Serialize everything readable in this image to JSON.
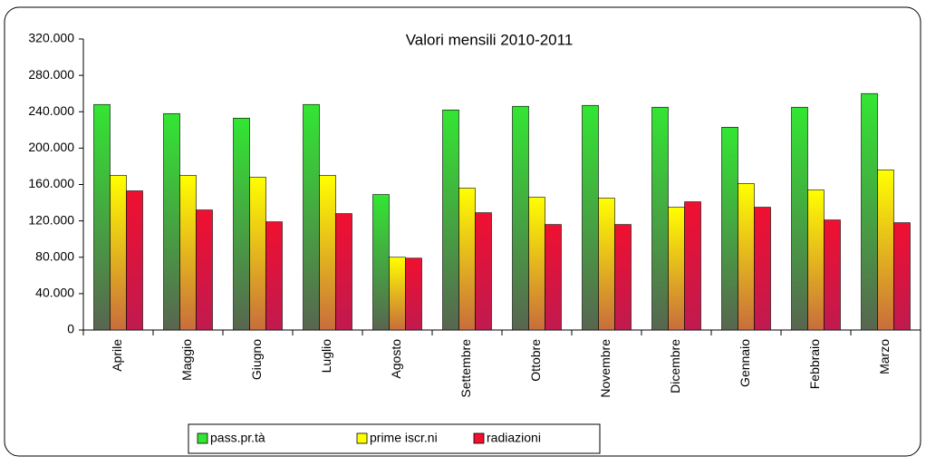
{
  "chart_data": {
    "type": "bar",
    "title": "Valori mensili 2010-2011",
    "categories": [
      "Aprile",
      "Maggio",
      "Giugno",
      "Luglio",
      "Agosto",
      "Settembre",
      "Ottobre",
      "Novembre",
      "Dicembre",
      "Gennaio",
      "Febbraio",
      "Marzo"
    ],
    "series": [
      {
        "name": "pass.pr.tà",
        "color": "#33e633",
        "values": [
          248000,
          238000,
          233000,
          248000,
          149000,
          242000,
          246000,
          247000,
          245000,
          223000,
          245000,
          260000
        ]
      },
      {
        "name": "prime iscr.ni",
        "color": "#ffff00",
        "values": [
          170000,
          170000,
          168000,
          170000,
          80000,
          156000,
          146000,
          145000,
          135000,
          161000,
          154000,
          176000
        ]
      },
      {
        "name": "radiazioni",
        "color": "#f01030",
        "values": [
          153000,
          132000,
          119000,
          128000,
          79000,
          129000,
          116000,
          116000,
          141000,
          135000,
          121000,
          118000
        ]
      }
    ],
    "ylim": [
      0,
      320000
    ],
    "yticks": [
      0,
      {
        "value": 40000,
        "label": "40.000"
      },
      {
        "value": 80000,
        "label": "80.000"
      },
      {
        "value": 120000,
        "label": "120.000"
      },
      {
        "value": 160000,
        "label": "160.000"
      },
      {
        "value": 200000,
        "label": "200.000"
      },
      {
        "value": 240000,
        "label": "240.000"
      },
      {
        "value": 280000,
        "label": "280.000"
      },
      {
        "value": 320000,
        "label": "320.000"
      }
    ],
    "grid": false,
    "legend": "bottom"
  }
}
